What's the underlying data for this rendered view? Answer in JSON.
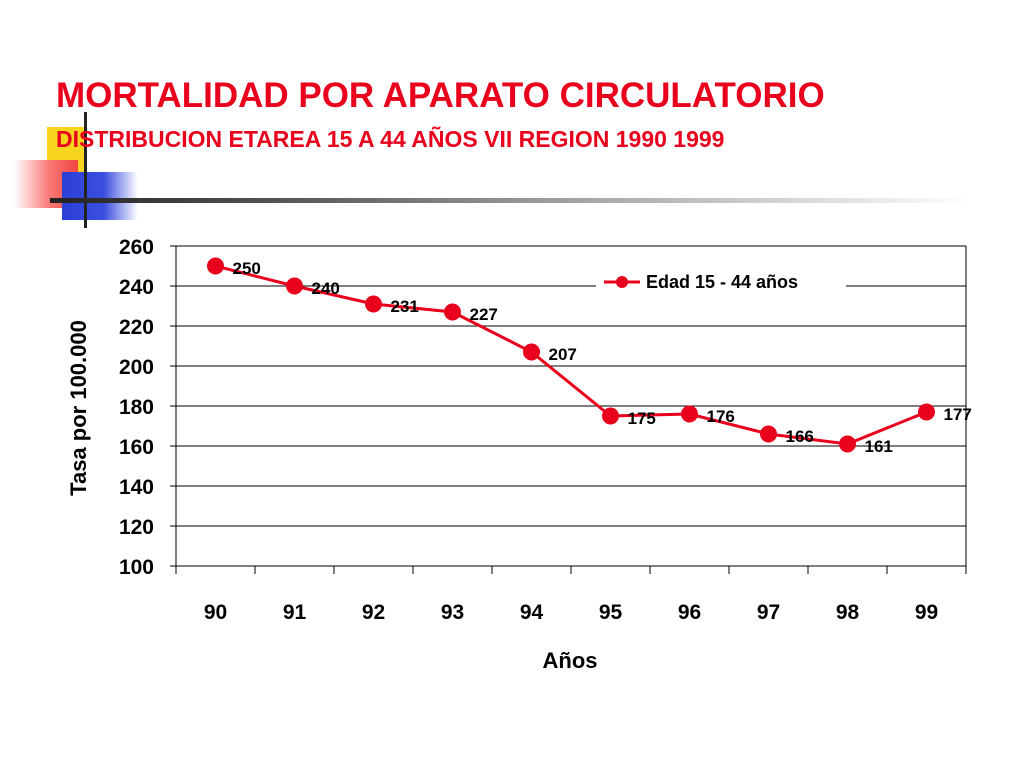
{
  "slide": {
    "title": "MORTALIDAD POR APARATO CIRCULATORIO",
    "subtitle": "DISTRIBUCION ETAREA 15 A 44 AÑOS VII REGION 1990 1999"
  },
  "colors": {
    "title": "#e8001c",
    "series": "#e8001c"
  },
  "chart_data": {
    "type": "line",
    "categories": [
      "90",
      "91",
      "92",
      "93",
      "94",
      "95",
      "96",
      "97",
      "98",
      "99"
    ],
    "series": [
      {
        "name": "Edad 15 - 44 años",
        "values": [
          250,
          240,
          231,
          227,
          207,
          175,
          176,
          166,
          161,
          177
        ]
      }
    ],
    "data_labels": [
      "250",
      "240",
      "231",
      "227",
      "207",
      "175",
      "176",
      "166",
      "161",
      "177"
    ],
    "xlabel": "Años",
    "ylabel": "Tasa por 100.000",
    "ylim": [
      100,
      260
    ],
    "yticks": [
      100,
      120,
      140,
      160,
      180,
      200,
      220,
      240,
      260
    ],
    "grid": true,
    "legend": "top-right"
  }
}
